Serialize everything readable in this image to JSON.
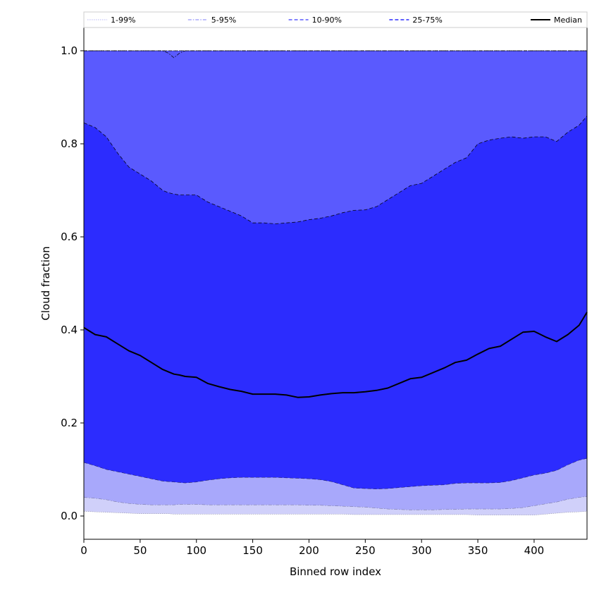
{
  "chart_data": {
    "type": "area",
    "title": "",
    "xlabel": "Binned row index",
    "ylabel": "Cloud fraction",
    "xlim": [
      0,
      447
    ],
    "ylim": [
      -0.05,
      1.05
    ],
    "xticks": [
      0,
      50,
      100,
      150,
      200,
      250,
      300,
      350,
      400
    ],
    "yticks": [
      0.0,
      0.2,
      0.4,
      0.6,
      0.8,
      1.0
    ],
    "xtick_labels": [
      "0",
      "50",
      "100",
      "150",
      "200",
      "250",
      "300",
      "350",
      "400"
    ],
    "ytick_labels": [
      "0.0",
      "0.2",
      "0.4",
      "0.6",
      "0.8",
      "1.0"
    ],
    "grid": false,
    "legend_position": "top (above plot, single row)",
    "x": [
      0,
      10,
      20,
      30,
      40,
      50,
      60,
      70,
      75,
      80,
      85,
      90,
      100,
      110,
      120,
      130,
      140,
      150,
      160,
      170,
      180,
      190,
      200,
      210,
      220,
      230,
      240,
      250,
      260,
      270,
      280,
      290,
      300,
      310,
      320,
      330,
      340,
      350,
      360,
      370,
      380,
      390,
      400,
      410,
      420,
      430,
      440,
      447
    ],
    "bands": [
      {
        "name": "1-99%",
        "color": "#d0d0fa",
        "linestyle": "dotted",
        "lower": [
          0.01,
          0.009,
          0.008,
          0.007,
          0.006,
          0.005,
          0.005,
          0.005,
          0.005,
          0.004,
          0.004,
          0.004,
          0.004,
          0.004,
          0.004,
          0.004,
          0.004,
          0.004,
          0.004,
          0.004,
          0.004,
          0.004,
          0.004,
          0.004,
          0.004,
          0.004,
          0.003,
          0.003,
          0.003,
          0.003,
          0.003,
          0.003,
          0.003,
          0.003,
          0.003,
          0.003,
          0.003,
          0.002,
          0.002,
          0.002,
          0.002,
          0.002,
          0.002,
          0.004,
          0.006,
          0.008,
          0.009,
          0.01
        ],
        "upper": [
          1.0,
          1.0,
          1.0,
          1.0,
          1.0,
          1.0,
          1.0,
          1.0,
          1.0,
          1.0,
          1.0,
          1.0,
          1.0,
          1.0,
          1.0,
          1.0,
          1.0,
          1.0,
          1.0,
          1.0,
          1.0,
          1.0,
          1.0,
          1.0,
          1.0,
          1.0,
          1.0,
          1.0,
          1.0,
          1.0,
          1.0,
          1.0,
          1.0,
          1.0,
          1.0,
          1.0,
          1.0,
          1.0,
          1.0,
          1.0,
          1.0,
          1.0,
          1.0,
          1.0,
          1.0,
          1.0,
          1.0,
          1.0
        ]
      },
      {
        "name": "5-95%",
        "color": "#a8a8fb",
        "linestyle": "dashdot",
        "lower": [
          0.04,
          0.038,
          0.035,
          0.03,
          0.027,
          0.025,
          0.024,
          0.024,
          0.024,
          0.024,
          0.025,
          0.025,
          0.025,
          0.024,
          0.024,
          0.024,
          0.024,
          0.024,
          0.024,
          0.024,
          0.024,
          0.024,
          0.023,
          0.023,
          0.022,
          0.021,
          0.02,
          0.019,
          0.017,
          0.015,
          0.014,
          0.013,
          0.013,
          0.013,
          0.014,
          0.014,
          0.015,
          0.015,
          0.015,
          0.015,
          0.016,
          0.018,
          0.022,
          0.026,
          0.03,
          0.036,
          0.04,
          0.042
        ],
        "upper": [
          1.0,
          1.0,
          1.0,
          1.0,
          1.0,
          1.0,
          1.0,
          1.0,
          0.995,
          0.985,
          0.995,
          1.0,
          1.0,
          1.0,
          1.0,
          1.0,
          1.0,
          1.0,
          1.0,
          1.0,
          1.0,
          1.0,
          1.0,
          1.0,
          1.0,
          1.0,
          1.0,
          1.0,
          1.0,
          1.0,
          1.0,
          1.0,
          1.0,
          1.0,
          1.0,
          1.0,
          1.0,
          1.0,
          1.0,
          1.0,
          1.0,
          1.0,
          1.0,
          1.0,
          1.0,
          1.0,
          1.0,
          1.0
        ]
      },
      {
        "name": "10-90%",
        "color": "#5a5afe",
        "linestyle": "dashed",
        "lower": [
          0.115,
          0.108,
          0.1,
          0.095,
          0.09,
          0.085,
          0.08,
          0.075,
          0.074,
          0.073,
          0.072,
          0.071,
          0.073,
          0.077,
          0.08,
          0.082,
          0.083,
          0.083,
          0.083,
          0.083,
          0.082,
          0.081,
          0.08,
          0.078,
          0.074,
          0.067,
          0.06,
          0.059,
          0.058,
          0.059,
          0.061,
          0.063,
          0.065,
          0.066,
          0.067,
          0.07,
          0.071,
          0.071,
          0.071,
          0.072,
          0.076,
          0.082,
          0.088,
          0.092,
          0.098,
          0.11,
          0.12,
          0.124
        ],
        "upper": [
          1.0,
          1.0,
          1.0,
          1.0,
          1.0,
          1.0,
          1.0,
          1.0,
          1.0,
          1.0,
          1.0,
          1.0,
          1.0,
          1.0,
          1.0,
          1.0,
          1.0,
          1.0,
          1.0,
          1.0,
          1.0,
          1.0,
          1.0,
          1.0,
          1.0,
          1.0,
          1.0,
          1.0,
          1.0,
          1.0,
          1.0,
          1.0,
          1.0,
          1.0,
          1.0,
          1.0,
          1.0,
          1.0,
          1.0,
          1.0,
          1.0,
          1.0,
          1.0,
          1.0,
          1.0,
          1.0,
          1.0,
          1.0
        ]
      },
      {
        "name": "25-75%",
        "color": "#2c2cfe",
        "linestyle": "dashed",
        "lower": [
          0.115,
          0.108,
          0.1,
          0.095,
          0.09,
          0.085,
          0.08,
          0.075,
          0.074,
          0.073,
          0.072,
          0.071,
          0.073,
          0.077,
          0.08,
          0.082,
          0.083,
          0.083,
          0.083,
          0.083,
          0.082,
          0.081,
          0.08,
          0.078,
          0.074,
          0.067,
          0.06,
          0.059,
          0.058,
          0.059,
          0.061,
          0.063,
          0.065,
          0.066,
          0.067,
          0.07,
          0.071,
          0.071,
          0.071,
          0.072,
          0.076,
          0.082,
          0.088,
          0.092,
          0.098,
          0.11,
          0.12,
          0.124
        ],
        "upper": [
          0.845,
          0.835,
          0.815,
          0.78,
          0.75,
          0.735,
          0.72,
          0.7,
          0.695,
          0.692,
          0.69,
          0.69,
          0.69,
          0.675,
          0.665,
          0.655,
          0.645,
          0.63,
          0.63,
          0.628,
          0.63,
          0.632,
          0.637,
          0.64,
          0.645,
          0.652,
          0.657,
          0.658,
          0.665,
          0.68,
          0.695,
          0.71,
          0.715,
          0.73,
          0.745,
          0.76,
          0.77,
          0.8,
          0.808,
          0.812,
          0.815,
          0.812,
          0.815,
          0.815,
          0.805,
          0.825,
          0.84,
          0.86
        ]
      }
    ],
    "series": [
      {
        "name": "Median",
        "color": "#000000",
        "values": [
          0.405,
          0.39,
          0.385,
          0.37,
          0.355,
          0.345,
          0.33,
          0.315,
          0.31,
          0.305,
          0.303,
          0.3,
          0.298,
          0.285,
          0.278,
          0.272,
          0.268,
          0.262,
          0.262,
          0.262,
          0.26,
          0.255,
          0.256,
          0.26,
          0.263,
          0.265,
          0.265,
          0.267,
          0.27,
          0.275,
          0.285,
          0.295,
          0.298,
          0.308,
          0.318,
          0.33,
          0.335,
          0.348,
          0.36,
          0.365,
          0.38,
          0.395,
          0.397,
          0.385,
          0.375,
          0.39,
          0.41,
          0.438
        ]
      }
    ]
  }
}
